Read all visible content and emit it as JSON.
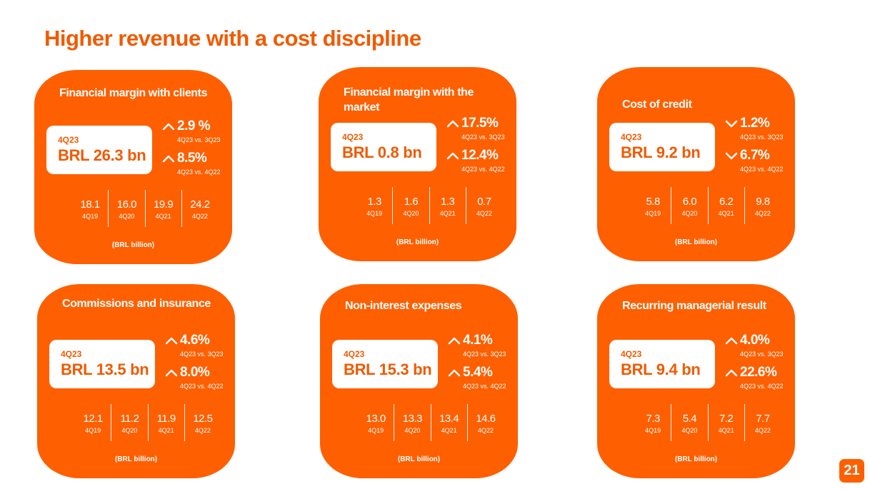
{
  "title": "Higher revenue with a cost discipline",
  "page_number": "21",
  "accent_color": "#fe5f00",
  "cards": [
    {
      "title": "Financial margin with clients",
      "period": "4Q23",
      "amount": "BRL 26.3 bn",
      "changes": [
        {
          "direction": "up",
          "value": "2.9 %",
          "label": "4Q23 vs. 3Q23"
        },
        {
          "direction": "up",
          "value": "8.5%",
          "label": "4Q23 vs. 4Q22"
        }
      ],
      "history": [
        {
          "value": "18.1",
          "quarter": "4Q19"
        },
        {
          "value": "16.0",
          "quarter": "4Q20"
        },
        {
          "value": "19.9",
          "quarter": "4Q21"
        },
        {
          "value": "24.2",
          "quarter": "4Q22"
        }
      ],
      "units": "(BRL billion)"
    },
    {
      "title": "Financial margin with the market",
      "period": "4Q23",
      "amount": "BRL 0.8 bn",
      "changes": [
        {
          "direction": "up",
          "value": "17.5%",
          "label": "4Q23 vs. 3Q23"
        },
        {
          "direction": "up",
          "value": "12.4%",
          "label": "4Q23 vs. 4Q22"
        }
      ],
      "history": [
        {
          "value": "1.3",
          "quarter": "4Q19"
        },
        {
          "value": "1.6",
          "quarter": "4Q20"
        },
        {
          "value": "1.3",
          "quarter": "4Q21"
        },
        {
          "value": "0.7",
          "quarter": "4Q22"
        }
      ],
      "units": "(BRL billion)"
    },
    {
      "title": "Cost of credit",
      "period": "4Q23",
      "amount": "BRL 9.2 bn",
      "changes": [
        {
          "direction": "down",
          "value": "1.2%",
          "label": "4Q23 vs. 3Q23"
        },
        {
          "direction": "down",
          "value": "6.7%",
          "label": "4Q23 vs. 4Q22"
        }
      ],
      "history": [
        {
          "value": "5.8",
          "quarter": "4Q19"
        },
        {
          "value": "6.0",
          "quarter": "4Q20"
        },
        {
          "value": "6.2",
          "quarter": "4Q21"
        },
        {
          "value": "9.8",
          "quarter": "4Q22"
        }
      ],
      "units": "(BRL billion)"
    },
    {
      "title": "Commissions and insurance",
      "period": "4Q23",
      "amount": "BRL 13.5 bn",
      "changes": [
        {
          "direction": "up",
          "value": "4.6%",
          "label": "4Q23 vs. 3Q23"
        },
        {
          "direction": "up",
          "value": "8.0%",
          "label": "4Q23 vs. 4Q22"
        }
      ],
      "history": [
        {
          "value": "12.1",
          "quarter": "4Q19"
        },
        {
          "value": "11.2",
          "quarter": "4Q20"
        },
        {
          "value": "11.9",
          "quarter": "4Q21"
        },
        {
          "value": "12.5",
          "quarter": "4Q22"
        }
      ],
      "units": "(BRL billion)"
    },
    {
      "title": "Non-interest expenses",
      "period": "4Q23",
      "amount": "BRL 15.3 bn",
      "changes": [
        {
          "direction": "up",
          "value": "4.1%",
          "label": "4Q23 vs. 3Q23"
        },
        {
          "direction": "up",
          "value": "5.4%",
          "label": "4Q23 vs. 4Q22"
        }
      ],
      "history": [
        {
          "value": "13.0",
          "quarter": "4Q19"
        },
        {
          "value": "13.3",
          "quarter": "4Q20"
        },
        {
          "value": "13.4",
          "quarter": "4Q21"
        },
        {
          "value": "14.6",
          "quarter": "4Q22"
        }
      ],
      "units": "(BRL billion)"
    },
    {
      "title": "Recurring managerial result",
      "period": "4Q23",
      "amount": "BRL 9.4 bn",
      "changes": [
        {
          "direction": "up",
          "value": "4.0%",
          "label": "4Q23 vs. 3Q23"
        },
        {
          "direction": "up",
          "value": "22.6%",
          "label": "4Q23 vs. 4Q22"
        }
      ],
      "history": [
        {
          "value": "7.3",
          "quarter": "4Q19"
        },
        {
          "value": "5.4",
          "quarter": "4Q20"
        },
        {
          "value": "7.2",
          "quarter": "4Q21"
        },
        {
          "value": "7.7",
          "quarter": "4Q22"
        }
      ],
      "units": "(BRL billion)"
    }
  ]
}
